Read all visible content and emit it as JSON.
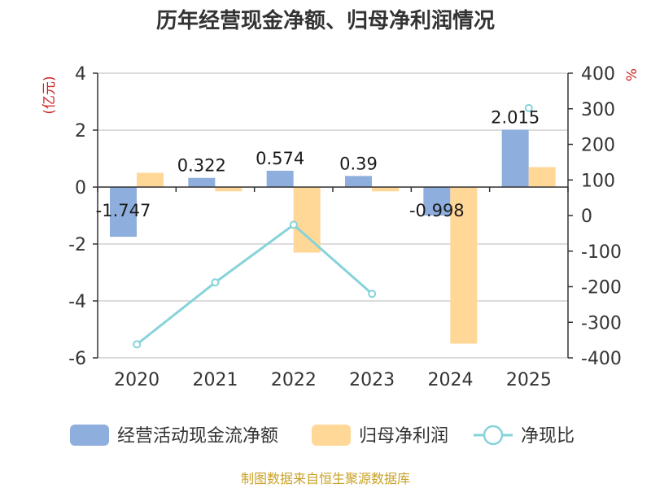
{
  "chart_data": {
    "type": "bar+line",
    "title": "历年经营现金净额、归母净利润情况",
    "left_unit": "(亿元)",
    "right_unit": "%",
    "categories": [
      "2020",
      "2021",
      "2022",
      "2023",
      "2024",
      "2025"
    ],
    "y_left": {
      "min": -6,
      "max": 4,
      "ticks": [
        4,
        2,
        0,
        -2,
        -4,
        -6
      ]
    },
    "y_right": {
      "min": -400,
      "max": 400,
      "ticks": [
        400,
        300,
        200,
        100,
        0,
        -100,
        -200,
        -300,
        -400
      ]
    },
    "series": [
      {
        "name": "经营活动现金流净额",
        "type": "bar",
        "axis": "left",
        "color": "#8eaedd",
        "values": [
          -1.747,
          0.322,
          0.574,
          0.39,
          -0.998,
          2.015
        ],
        "labels": [
          "-1.747",
          "0.322",
          "0.574",
          "0.39",
          "-0.998",
          "2.015"
        ]
      },
      {
        "name": "归母净利润",
        "type": "bar",
        "axis": "left",
        "color": "#ffd797",
        "values": [
          0.5,
          -0.15,
          -2.3,
          -0.15,
          -5.5,
          0.7
        ]
      },
      {
        "name": "净现比",
        "type": "line",
        "axis": "right",
        "color": "#86d3da",
        "values": [
          -362,
          -188,
          -26,
          -220,
          null,
          302
        ]
      }
    ]
  },
  "source": "制图数据来自恒生聚源数据库"
}
